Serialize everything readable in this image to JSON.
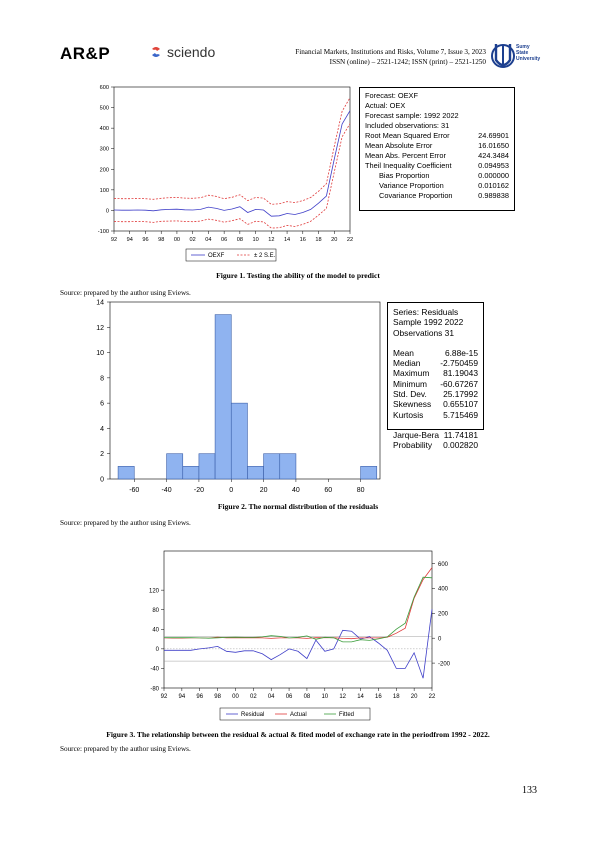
{
  "header": {
    "logo_arp": "AR&P",
    "logo_sciendo": "sciendo",
    "journal_line1": "Financial Markets, Institutions and Risks, Volume 7, Issue 3, 2023",
    "journal_line2": "ISSN (online) – 2521-1242; ISSN (print) – 2521-1250",
    "uni_logo_text": [
      "Sumy",
      "State",
      "University"
    ]
  },
  "figure1": {
    "caption": "Figure 1. Testing the ability of the model to predict",
    "source": "Source: prepared by the author using Eviews.",
    "chart_data": {
      "type": "line",
      "x": [
        "92",
        "93",
        "94",
        "95",
        "96",
        "97",
        "98",
        "99",
        "00",
        "01",
        "02",
        "03",
        "04",
        "05",
        "06",
        "07",
        "08",
        "09",
        "10",
        "11",
        "12",
        "13",
        "14",
        "15",
        "16",
        "17",
        "18",
        "19",
        "20",
        "21",
        "22"
      ],
      "x_ticks": [
        "92",
        "94",
        "96",
        "98",
        "00",
        "02",
        "04",
        "06",
        "08",
        "10",
        "12",
        "14",
        "16",
        "18",
        "20",
        "22"
      ],
      "y_ticks": [
        "600",
        "500",
        "400",
        "300",
        "200",
        "100",
        "0",
        "-100"
      ],
      "ylim": [
        -100,
        600
      ],
      "series": [
        {
          "name": "OEXF",
          "color": "#3f3fc8",
          "style": "solid",
          "values": [
            2,
            1,
            1,
            2,
            1,
            -2,
            3,
            5,
            6,
            3,
            2,
            5,
            16,
            10,
            0,
            7,
            18,
            -10,
            5,
            2,
            -28,
            -26,
            -15,
            -20,
            -10,
            5,
            35,
            70,
            250,
            420,
            485
          ]
        },
        {
          "name": "upper",
          "color": "#e03a3a",
          "style": "dashed",
          "values": [
            58,
            57,
            57,
            58,
            57,
            54,
            59,
            62,
            63,
            60,
            59,
            62,
            74,
            68,
            57,
            64,
            76,
            48,
            63,
            60,
            30,
            32,
            43,
            38,
            48,
            63,
            93,
            130,
            312,
            482,
            548
          ]
        },
        {
          "name": "lower",
          "color": "#e03a3a",
          "style": "dashed",
          "values": [
            -54,
            -55,
            -55,
            -54,
            -55,
            -58,
            -53,
            -52,
            -51,
            -54,
            -55,
            -52,
            -42,
            -48,
            -57,
            -50,
            -40,
            -68,
            -53,
            -56,
            -86,
            -84,
            -73,
            -78,
            -68,
            -53,
            -23,
            10,
            188,
            358,
            422
          ]
        }
      ],
      "legend": [
        {
          "label": "OEXF",
          "color": "#3f3fc8",
          "dashed": false
        },
        {
          "label": "± 2 S.E.",
          "color": "#e03a3a",
          "dashed": true
        }
      ],
      "legend_position": "bottom"
    },
    "stats": {
      "lines": [
        "Forecast: OEXF",
        "Actual: OEX",
        "Forecast sample: 1992 2022",
        "Included observations: 31"
      ],
      "rows": [
        {
          "label": "Root Mean Squared Error",
          "value": "24.69901",
          "indent": false
        },
        {
          "label": "Mean Absolute Error",
          "value": "16.01650",
          "indent": false
        },
        {
          "label": "Mean Abs. Percent Error",
          "value": "424.3484",
          "indent": false
        },
        {
          "label": "Theil Inequality Coefficient",
          "value": "0.094953",
          "indent": false
        },
        {
          "label": "Bias Proportion",
          "value": "0.000000",
          "indent": true
        },
        {
          "label": "Variance Proportion",
          "value": "0.010162",
          "indent": true
        },
        {
          "label": "Covariance Proportion",
          "value": "0.989838",
          "indent": true
        }
      ]
    }
  },
  "figure2": {
    "caption": "Figure 2. The normal distribution of the residuals",
    "source": "Source: prepared by the author using Eviews.",
    "chart_data": {
      "type": "bar",
      "bin_width": 10,
      "bins": [
        {
          "from": -70,
          "to": -60,
          "count": 1
        },
        {
          "from": -60,
          "to": -50,
          "count": 0
        },
        {
          "from": -50,
          "to": -40,
          "count": 0
        },
        {
          "from": -40,
          "to": -30,
          "count": 2
        },
        {
          "from": -30,
          "to": -20,
          "count": 1
        },
        {
          "from": -20,
          "to": -10,
          "count": 2
        },
        {
          "from": -10,
          "to": 0,
          "count": 13
        },
        {
          "from": 0,
          "to": 10,
          "count": 6
        },
        {
          "from": 10,
          "to": 20,
          "count": 1
        },
        {
          "from": 20,
          "to": 30,
          "count": 2
        },
        {
          "from": 30,
          "to": 40,
          "count": 2
        },
        {
          "from": 40,
          "to": 50,
          "count": 0
        },
        {
          "from": 50,
          "to": 60,
          "count": 0
        },
        {
          "from": 60,
          "to": 70,
          "count": 0
        },
        {
          "from": 70,
          "to": 80,
          "count": 0
        },
        {
          "from": 80,
          "to": 90,
          "count": 1
        }
      ],
      "xlim": [
        -75,
        92
      ],
      "ylim": [
        0,
        14
      ],
      "x_ticks": [
        "-60",
        "-40",
        "-20",
        "0",
        "20",
        "40",
        "60",
        "80"
      ],
      "y_ticks": [
        "0",
        "2",
        "4",
        "6",
        "8",
        "10",
        "12",
        "14"
      ],
      "bar_color": "#8fb3f0"
    },
    "stats": {
      "lines": [
        "Series: Residuals",
        "Sample 1992 2022",
        "Observations 31"
      ],
      "rows": [
        {
          "label": "Mean",
          "value": "6.88e-15"
        },
        {
          "label": "Median",
          "value": "-2.750459"
        },
        {
          "label": "Maximum",
          "value": "81.19043"
        },
        {
          "label": "Minimum",
          "value": "-60.67267"
        },
        {
          "label": "Std. Dev.",
          "value": "25.17992"
        },
        {
          "label": "Skewness",
          "value": "0.655107"
        },
        {
          "label": "Kurtosis",
          "value": "5.715469"
        }
      ],
      "rows2": [
        {
          "label": "Jarque-Bera",
          "value": "11.74181"
        },
        {
          "label": "Probability",
          "value": "0.002820"
        }
      ]
    }
  },
  "figure3": {
    "caption": "Figure 3. The relationship between the residual & actual & fited model of exchange rate in the periodfrom 1992 - 2022.",
    "source": "Source: prepared by the author using Eviews.",
    "chart_data": {
      "type": "line",
      "x": [
        "92",
        "93",
        "94",
        "95",
        "96",
        "97",
        "98",
        "99",
        "00",
        "01",
        "02",
        "03",
        "04",
        "05",
        "06",
        "07",
        "08",
        "09",
        "10",
        "11",
        "12",
        "13",
        "14",
        "15",
        "16",
        "17",
        "18",
        "19",
        "20",
        "21",
        "22"
      ],
      "x_ticks": [
        "92",
        "94",
        "96",
        "98",
        "00",
        "02",
        "04",
        "06",
        "08",
        "10",
        "12",
        "14",
        "16",
        "18",
        "20",
        "22"
      ],
      "left_axis": {
        "ylim": [
          -80,
          200
        ],
        "ticks": [
          "120",
          "80",
          "40",
          "0",
          "-40",
          "-80"
        ]
      },
      "right_axis": {
        "ylim": [
          -400,
          700
        ],
        "ticks": [
          "600",
          "400",
          "200",
          "0",
          "-200"
        ]
      },
      "reference_band": [
        -25,
        25
      ],
      "series": [
        {
          "name": "Residual",
          "axis": "left",
          "color": "#3f3fc8",
          "values": [
            -3,
            -3,
            -3,
            -3,
            0,
            2,
            5,
            -5,
            -7,
            -4,
            -4,
            -10,
            -22,
            -12,
            0,
            -5,
            -20,
            18,
            -5,
            0,
            38,
            36,
            20,
            25,
            12,
            -3,
            -40,
            -40,
            -8,
            -60,
            81
          ]
        },
        {
          "name": "Actual",
          "axis": "right",
          "color": "#e03a3a",
          "values": [
            2,
            1,
            1,
            2,
            2,
            1,
            8,
            2,
            2,
            2,
            2,
            2,
            -2,
            2,
            2,
            2,
            -2,
            4,
            4,
            4,
            -2,
            -4,
            2,
            2,
            2,
            8,
            40,
            80,
            320,
            470,
            567
          ]
        },
        {
          "name": "Fitted",
          "axis": "right",
          "color": "#3c9e3c",
          "values": [
            5,
            4,
            4,
            5,
            2,
            0,
            3,
            6,
            8,
            6,
            6,
            10,
            20,
            14,
            2,
            7,
            18,
            -9,
            7,
            3,
            -30,
            -30,
            -12,
            -18,
            -6,
            10,
            72,
            120,
            330,
            490,
            485
          ]
        }
      ],
      "legend": [
        {
          "label": "Residual",
          "color": "#3f3fc8"
        },
        {
          "label": "Actual",
          "color": "#e03a3a"
        },
        {
          "label": "Fitted",
          "color": "#3c9e3c"
        }
      ],
      "legend_position": "bottom"
    }
  },
  "page_number": "133"
}
